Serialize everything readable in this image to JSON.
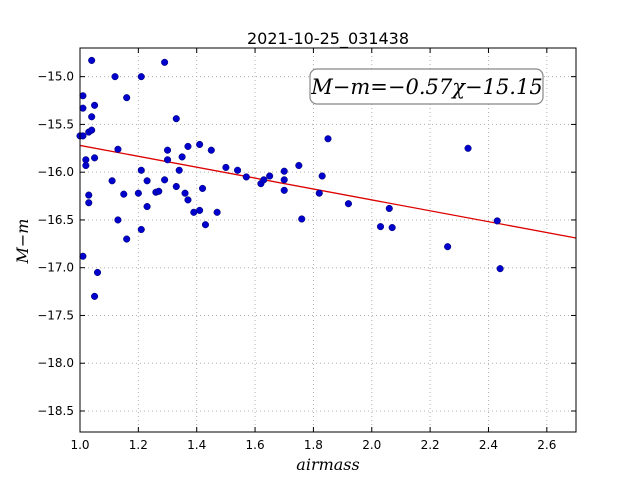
{
  "chart_data": {
    "type": "scatter",
    "title": "2021-10-25_031438",
    "xlabel": "airmass",
    "ylabel": "M−m",
    "xlim": [
      1.0,
      2.7
    ],
    "ylim": [
      -14.7,
      -18.72
    ],
    "y_inverted": true,
    "grid": true,
    "grid_style": "dotted",
    "x_ticks": [
      "1.0",
      "1.2",
      "1.4",
      "1.6",
      "1.8",
      "2.0",
      "2.2",
      "2.4",
      "2.6"
    ],
    "y_ticks": [
      "−15.0",
      "−15.5",
      "−16.0",
      "−16.5",
      "−17.0",
      "−17.5",
      "−18.0",
      "−18.5"
    ],
    "annotation": "M−m=−0.57χ−15.15",
    "fit": {
      "slope": -0.57,
      "intercept": -15.15,
      "x_range": [
        1.0,
        2.7
      ]
    },
    "colors": {
      "points": "#0000cc",
      "fit": "#dd0000",
      "axis": "#000000",
      "grid": "#b0b0b0"
    },
    "points": [
      {
        "x": 1.0,
        "y": -15.62
      },
      {
        "x": 1.01,
        "y": -15.2
      },
      {
        "x": 1.01,
        "y": -15.33
      },
      {
        "x": 1.01,
        "y": -15.62
      },
      {
        "x": 1.01,
        "y": -16.88
      },
      {
        "x": 1.02,
        "y": -15.87
      },
      {
        "x": 1.02,
        "y": -15.93
      },
      {
        "x": 1.03,
        "y": -15.58
      },
      {
        "x": 1.03,
        "y": -16.24
      },
      {
        "x": 1.03,
        "y": -16.32
      },
      {
        "x": 1.04,
        "y": -14.83
      },
      {
        "x": 1.04,
        "y": -15.42
      },
      {
        "x": 1.04,
        "y": -15.56
      },
      {
        "x": 1.05,
        "y": -15.3
      },
      {
        "x": 1.05,
        "y": -15.85
      },
      {
        "x": 1.05,
        "y": -17.3
      },
      {
        "x": 1.06,
        "y": -17.05
      },
      {
        "x": 1.11,
        "y": -16.09
      },
      {
        "x": 1.12,
        "y": -15.0
      },
      {
        "x": 1.13,
        "y": -15.76
      },
      {
        "x": 1.13,
        "y": -16.5
      },
      {
        "x": 1.15,
        "y": -16.23
      },
      {
        "x": 1.16,
        "y": -15.22
      },
      {
        "x": 1.16,
        "y": -16.7
      },
      {
        "x": 1.2,
        "y": -16.22
      },
      {
        "x": 1.21,
        "y": -15.0
      },
      {
        "x": 1.21,
        "y": -15.98
      },
      {
        "x": 1.21,
        "y": -16.6
      },
      {
        "x": 1.23,
        "y": -16.09
      },
      {
        "x": 1.23,
        "y": -16.36
      },
      {
        "x": 1.26,
        "y": -16.21
      },
      {
        "x": 1.27,
        "y": -16.2
      },
      {
        "x": 1.29,
        "y": -14.85
      },
      {
        "x": 1.29,
        "y": -16.08
      },
      {
        "x": 1.3,
        "y": -15.77
      },
      {
        "x": 1.3,
        "y": -15.87
      },
      {
        "x": 1.33,
        "y": -15.44
      },
      {
        "x": 1.33,
        "y": -16.15
      },
      {
        "x": 1.34,
        "y": -15.98
      },
      {
        "x": 1.35,
        "y": -15.84
      },
      {
        "x": 1.36,
        "y": -16.22
      },
      {
        "x": 1.37,
        "y": -15.73
      },
      {
        "x": 1.37,
        "y": -16.29
      },
      {
        "x": 1.39,
        "y": -16.42
      },
      {
        "x": 1.41,
        "y": -15.71
      },
      {
        "x": 1.41,
        "y": -16.4
      },
      {
        "x": 1.42,
        "y": -16.17
      },
      {
        "x": 1.43,
        "y": -16.55
      },
      {
        "x": 1.45,
        "y": -15.77
      },
      {
        "x": 1.47,
        "y": -16.42
      },
      {
        "x": 1.5,
        "y": -15.95
      },
      {
        "x": 1.54,
        "y": -15.98
      },
      {
        "x": 1.57,
        "y": -16.05
      },
      {
        "x": 1.62,
        "y": -16.12
      },
      {
        "x": 1.63,
        "y": -16.08
      },
      {
        "x": 1.65,
        "y": -16.04
      },
      {
        "x": 1.7,
        "y": -15.99
      },
      {
        "x": 1.7,
        "y": -16.08
      },
      {
        "x": 1.7,
        "y": -16.19
      },
      {
        "x": 1.75,
        "y": -15.93
      },
      {
        "x": 1.76,
        "y": -16.49
      },
      {
        "x": 1.82,
        "y": -16.22
      },
      {
        "x": 1.83,
        "y": -16.04
      },
      {
        "x": 1.85,
        "y": -15.65
      },
      {
        "x": 1.92,
        "y": -16.33
      },
      {
        "x": 2.03,
        "y": -16.57
      },
      {
        "x": 2.06,
        "y": -16.38
      },
      {
        "x": 2.07,
        "y": -16.58
      },
      {
        "x": 2.26,
        "y": -16.78
      },
      {
        "x": 2.33,
        "y": -15.75
      },
      {
        "x": 2.43,
        "y": -16.51
      },
      {
        "x": 2.44,
        "y": -17.01
      }
    ]
  }
}
